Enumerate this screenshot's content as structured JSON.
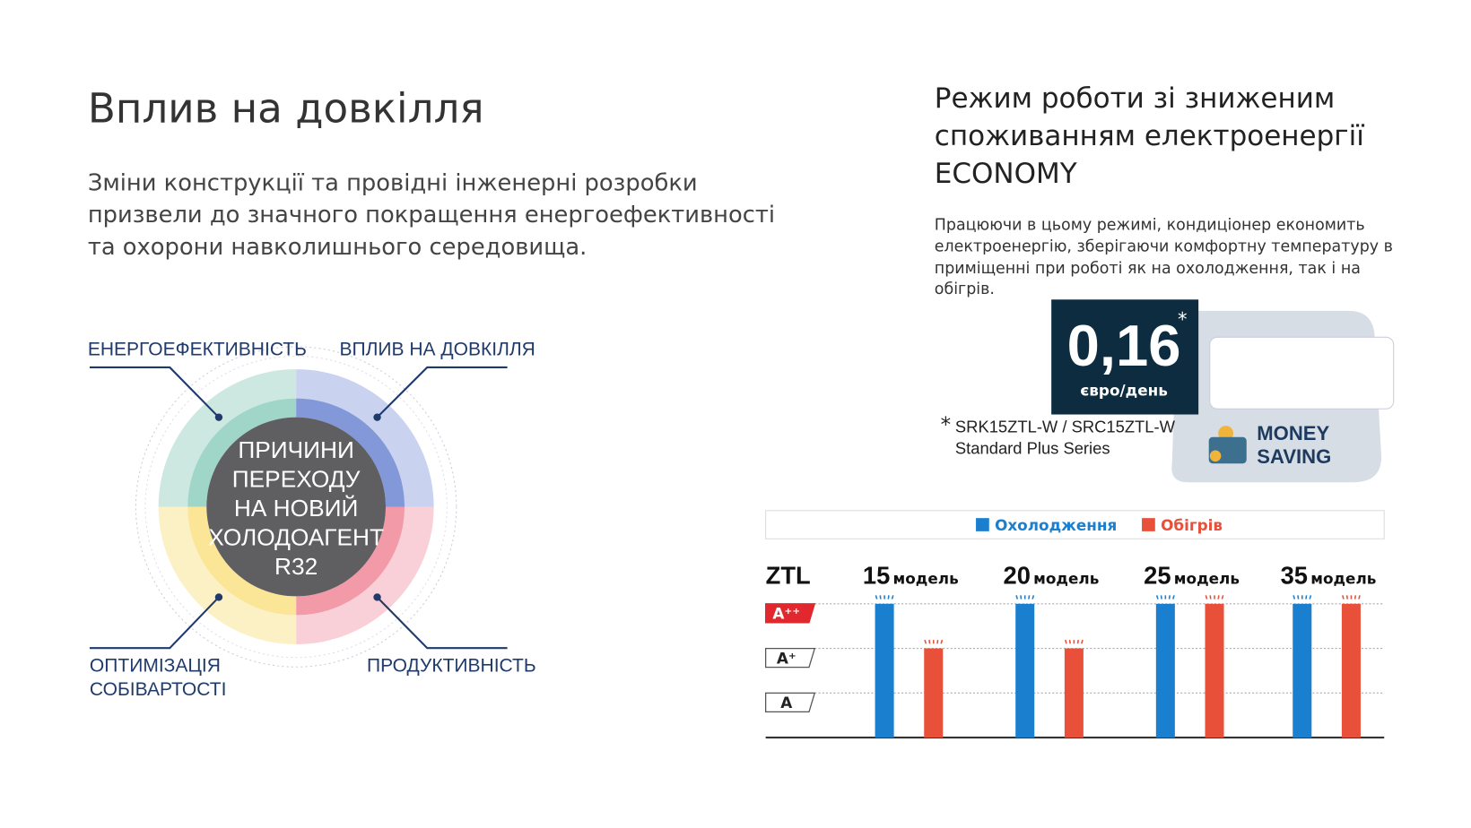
{
  "left": {
    "title": "Вплив на довкілля",
    "text": [
      "Зміни конструкції та провідні інженерні розробки",
      "призвели до значного покращення енергоефективності",
      "та охорони навколишнього середовища."
    ]
  },
  "diagram": {
    "center": [
      "ПРИЧИНИ",
      "ПЕРЕХОДУ",
      "НА НОВИЙ",
      "ХОЛОДОАГЕНТ",
      "R32"
    ],
    "top_left": "ЕНЕРГОЕФЕКТИВНІСТЬ",
    "top_right": "ВПЛИВ НА ДОВКІЛЛЯ",
    "bottom_left": [
      "ОПТИМІЗАЦІЯ",
      "СОБІВАРТОСТІ"
    ],
    "bottom_right": "ПРОДУКТИВНІСТЬ"
  },
  "right": {
    "title": [
      "Режим роботи зі зниженим",
      "споживанням електроенергії",
      "ECONOMY"
    ],
    "text": [
      "Працюючи в цьому режимі, кондиціонер економить",
      "електроенергію, зберігаючи комфортну температуру в",
      "приміщенні при роботі як на охолодження, так і на",
      "обігрів."
    ],
    "price": "0,16",
    "asterisk": "*",
    "unit": "євро/день",
    "footnote": [
      "SRK15ZTL-W / SRC15ZTL-W",
      "Standard Plus Series"
    ],
    "badge": [
      "MONEY",
      "SAVING"
    ]
  },
  "chart_data": {
    "type": "bar",
    "row_label": "ZTL",
    "category_suffix": "модель",
    "categories": [
      "15",
      "20",
      "25",
      "35"
    ],
    "series": [
      {
        "name": "Охолодження",
        "color": "#1b7fd0",
        "values": [
          3,
          3,
          3,
          3
        ]
      },
      {
        "name": "Обігрів",
        "color": "#e8503a",
        "values": [
          2,
          2,
          3,
          3
        ]
      }
    ],
    "ylim": [
      0,
      3
    ],
    "yticks": [
      {
        "value": 1,
        "label": "A"
      },
      {
        "value": 2,
        "label": "A⁺"
      },
      {
        "value": 3,
        "label": "A⁺⁺"
      }
    ],
    "grid": true,
    "legend": "top"
  }
}
